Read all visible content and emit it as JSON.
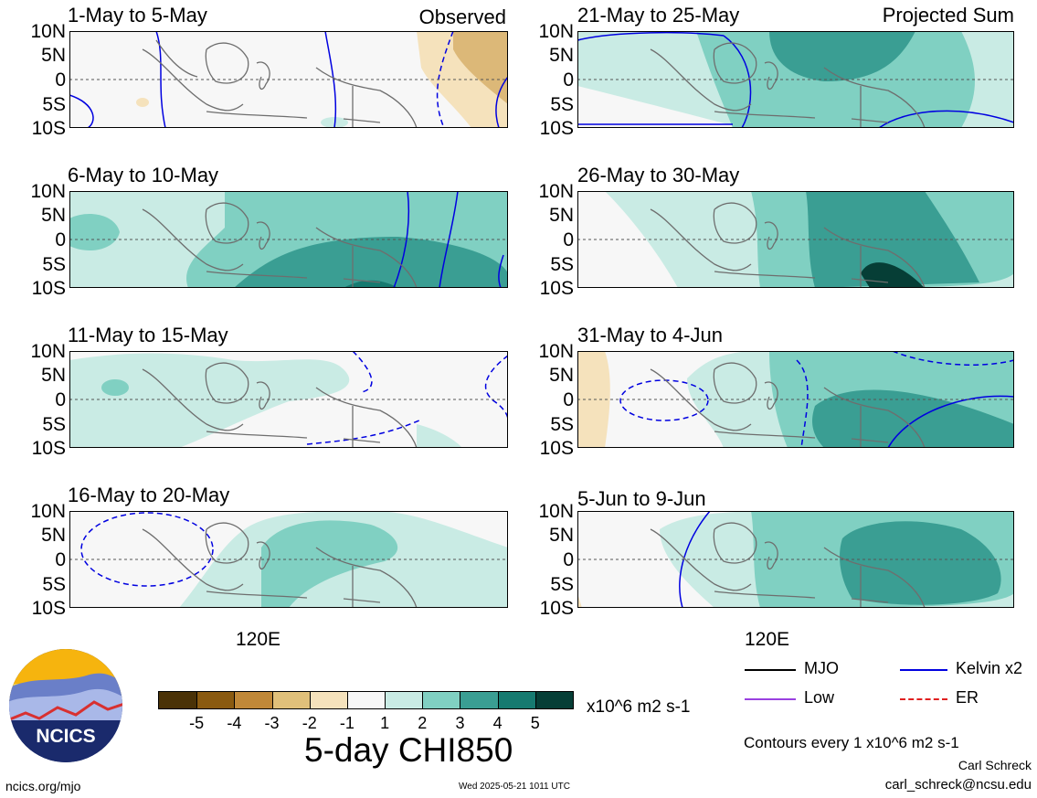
{
  "panels": [
    {
      "id": "p1",
      "title": "1-May to 5-May",
      "tag": "Observed",
      "col": 0,
      "row": 0
    },
    {
      "id": "p2",
      "title": "6-May to 10-May",
      "tag": "",
      "col": 0,
      "row": 1
    },
    {
      "id": "p3",
      "title": "11-May to 15-May",
      "tag": "",
      "col": 0,
      "row": 2
    },
    {
      "id": "p4",
      "title": "16-May to 20-May",
      "tag": "",
      "col": 0,
      "row": 3
    },
    {
      "id": "p5",
      "title": "21-May to 25-May",
      "tag": "Projected Sum",
      "col": 1,
      "row": 0
    },
    {
      "id": "p6",
      "title": "26-May to 30-May",
      "tag": "",
      "col": 1,
      "row": 1
    },
    {
      "id": "p7",
      "title": "31-May to 4-Jun",
      "tag": "",
      "col": 1,
      "row": 2
    },
    {
      "id": "p8",
      "title": "5-Jun to 9-Jun",
      "tag": "",
      "col": 1,
      "row": 3
    }
  ],
  "lat_labels": [
    "10N",
    "5N",
    "0",
    "5S",
    "10S"
  ],
  "lon_label": "120E",
  "colorbar": {
    "colors": [
      "#4a3207",
      "#8a5a10",
      "#c08838",
      "#e0c07a",
      "#f5e2bc",
      "#f7f7f7",
      "#c9ebe4",
      "#80d0c2",
      "#3a9e93",
      "#167a70",
      "#063e36"
    ],
    "ticks": [
      "-5",
      "-4",
      "-3",
      "-2",
      "-1",
      "1",
      "2",
      "3",
      "4",
      "5"
    ],
    "units": "x10^6 m2 s-1",
    "title": "5-day CHI850"
  },
  "legend": [
    {
      "label": "MJO",
      "color": "#000000",
      "style": "solid"
    },
    {
      "label": "Kelvin x2",
      "color": "#0000e0",
      "style": "solid"
    },
    {
      "label": "Low",
      "color": "#9a40e0",
      "style": "solid"
    },
    {
      "label": "ER",
      "color": "#e02020",
      "style": "dashed"
    }
  ],
  "contour_note": "Contours every 1 x10^6 m2 s-1",
  "author": "Carl Schreck",
  "email": "carl_schreck@ncsu.edu",
  "site": "ncics.org/mjo",
  "timestamp": "Wed 2025-05-21 1011 UTC",
  "logo_text": "NCICS"
}
